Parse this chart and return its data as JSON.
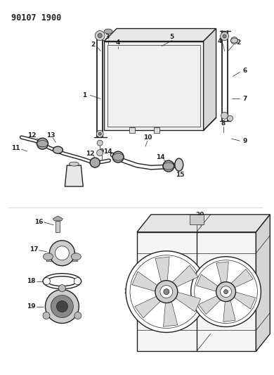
{
  "title": "90107 1900",
  "bg_color": "#ffffff",
  "lc": "#222222",
  "lw_main": 1.0,
  "lw_thin": 0.5,
  "label_fs": 6.5
}
